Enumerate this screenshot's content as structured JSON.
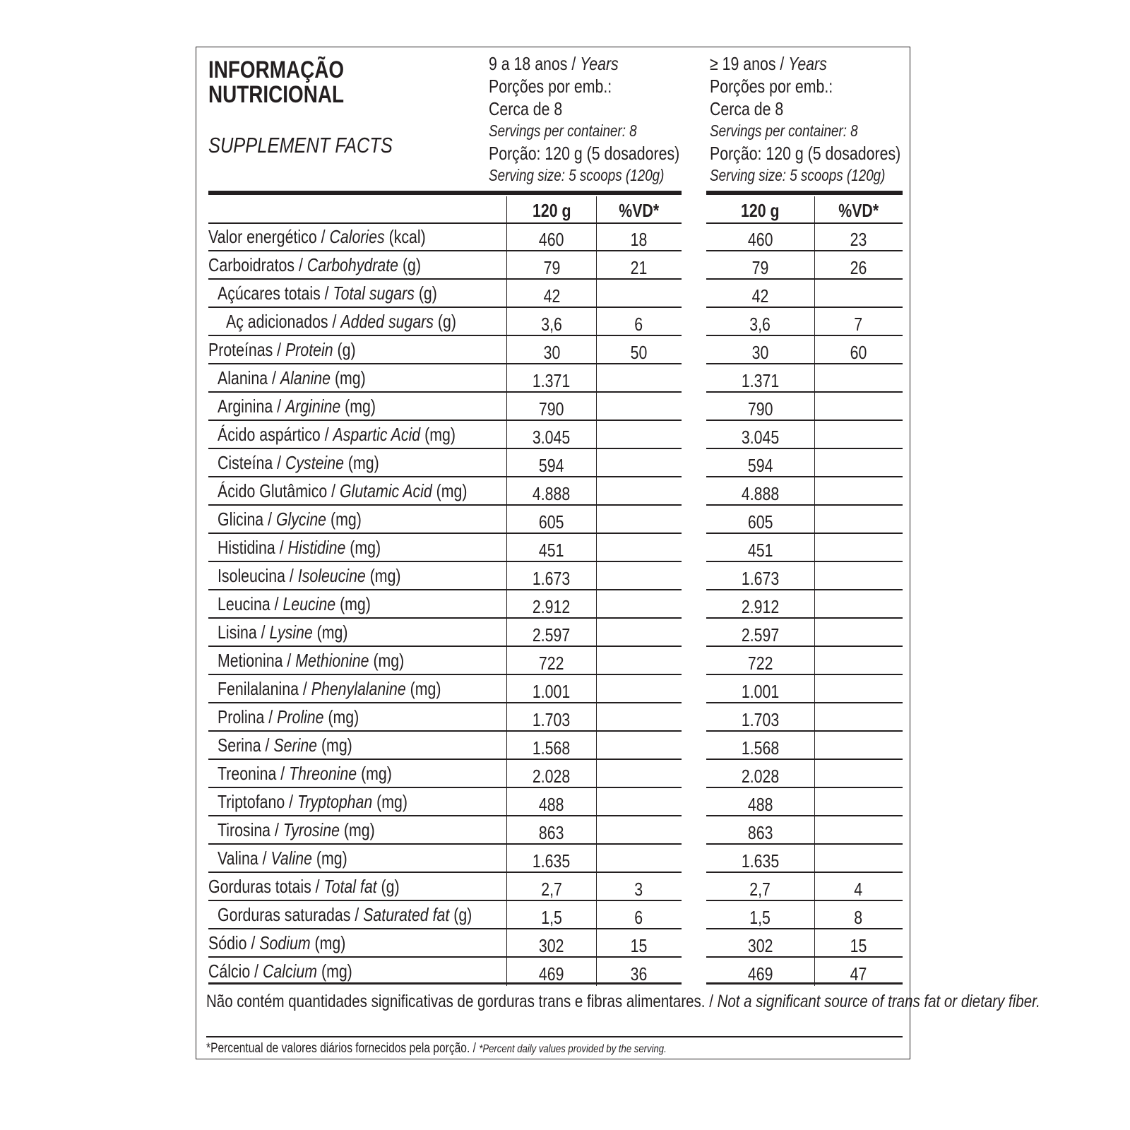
{
  "title_lines": [
    "INFORMAÇÃO",
    "NUTRICIONAL"
  ],
  "subtitle": "SUPPLEMENT FACTS",
  "groups": [
    {
      "age_pt": "9 a 18 anos",
      "age_en": "Years",
      "servings_pt_1": "Porções por emb.:",
      "servings_pt_2": "Cerca de 8",
      "servings_en": "Servings per container: 8",
      "portion_pt": "Porção: 120 g (5 dosadores)",
      "portion_en": "Serving size: 5 scoops (120g)",
      "col_amount": "120 g",
      "col_dv": "%VD*"
    },
    {
      "age_pt": "≥ 19 anos",
      "age_en": "Years",
      "servings_pt_1": "Porções por emb.:",
      "servings_pt_2": "Cerca de 8",
      "servings_en": "Servings per container: 8",
      "portion_pt": "Porção: 120 g (5 dosadores)",
      "portion_en": "Serving size: 5 scoops (120g)",
      "col_amount": "120 g",
      "col_dv": "%VD*"
    }
  ],
  "sep": " / ",
  "rows": [
    {
      "pt": "Valor energético",
      "en": "Calories",
      "unit": "(kcal)",
      "indent": 0,
      "a1": "460",
      "d1": "18",
      "a2": "460",
      "d2": "23"
    },
    {
      "pt": "Carboidratos",
      "en": "Carbohydrate",
      "unit": "(g)",
      "indent": 0,
      "a1": "79",
      "d1": "21",
      "a2": "79",
      "d2": "26"
    },
    {
      "pt": "Açúcares totais",
      "en": "Total sugars",
      "unit": "(g)",
      "indent": 1,
      "a1": "42",
      "d1": "",
      "a2": "42",
      "d2": ""
    },
    {
      "pt": "Aç adicionados",
      "en": "Added sugars",
      "unit": "(g)",
      "indent": 2,
      "a1": "3,6",
      "d1": "6",
      "a2": "3,6",
      "d2": "7"
    },
    {
      "pt": "Proteínas",
      "en": "Protein",
      "unit": "(g)",
      "indent": 0,
      "a1": "30",
      "d1": "50",
      "a2": "30",
      "d2": "60"
    },
    {
      "pt": "Alanina",
      "en": "Alanine",
      "unit": "(mg)",
      "indent": 1,
      "a1": "1.371",
      "d1": "",
      "a2": "1.371",
      "d2": ""
    },
    {
      "pt": "Arginina",
      "en": "Arginine",
      "unit": "(mg)",
      "indent": 1,
      "a1": "790",
      "d1": "",
      "a2": "790",
      "d2": ""
    },
    {
      "pt": "Ácido aspártico",
      "en": "Aspartic Acid",
      "unit": "(mg)",
      "indent": 1,
      "a1": "3.045",
      "d1": "",
      "a2": "3.045",
      "d2": ""
    },
    {
      "pt": "Cisteína",
      "en": "Cysteine",
      "unit": "(mg)",
      "indent": 1,
      "a1": "594",
      "d1": "",
      "a2": "594",
      "d2": ""
    },
    {
      "pt": "Ácido Glutâmico",
      "en": "Glutamic Acid",
      "unit": "(mg)",
      "indent": 1,
      "a1": "4.888",
      "d1": "",
      "a2": "4.888",
      "d2": ""
    },
    {
      "pt": "Glicina",
      "en": "Glycine",
      "unit": "(mg)",
      "indent": 1,
      "a1": "605",
      "d1": "",
      "a2": "605",
      "d2": ""
    },
    {
      "pt": "Histidina",
      "en": "Histidine",
      "unit": "(mg)",
      "indent": 1,
      "a1": "451",
      "d1": "",
      "a2": "451",
      "d2": ""
    },
    {
      "pt": "Isoleucina",
      "en": "Isoleucine",
      "unit": "(mg)",
      "indent": 1,
      "a1": "1.673",
      "d1": "",
      "a2": "1.673",
      "d2": ""
    },
    {
      "pt": "Leucina",
      "en": "Leucine",
      "unit": "(mg)",
      "indent": 1,
      "a1": "2.912",
      "d1": "",
      "a2": "2.912",
      "d2": ""
    },
    {
      "pt": "Lisina",
      "en": "Lysine",
      "unit": "(mg)",
      "indent": 1,
      "a1": "2.597",
      "d1": "",
      "a2": "2.597",
      "d2": ""
    },
    {
      "pt": "Metionina",
      "en": "Methionine",
      "unit": "(mg)",
      "indent": 1,
      "a1": "722",
      "d1": "",
      "a2": "722",
      "d2": ""
    },
    {
      "pt": "Fenilalanina",
      "en": "Phenylalanine",
      "unit": "(mg)",
      "indent": 1,
      "a1": "1.001",
      "d1": "",
      "a2": "1.001",
      "d2": ""
    },
    {
      "pt": "Prolina",
      "en": "Proline",
      "unit": "(mg)",
      "indent": 1,
      "a1": "1.703",
      "d1": "",
      "a2": "1.703",
      "d2": ""
    },
    {
      "pt": "Serina",
      "en": "Serine",
      "unit": "(mg)",
      "indent": 1,
      "a1": "1.568",
      "d1": "",
      "a2": "1.568",
      "d2": ""
    },
    {
      "pt": "Treonina",
      "en": "Threonine",
      "unit": "(mg)",
      "indent": 1,
      "a1": "2.028",
      "d1": "",
      "a2": "2.028",
      "d2": ""
    },
    {
      "pt": "Triptofano",
      "en": "Tryptophan",
      "unit": "(mg)",
      "indent": 1,
      "a1": "488",
      "d1": "",
      "a2": "488",
      "d2": ""
    },
    {
      "pt": "Tirosina",
      "en": "Tyrosine",
      "unit": "(mg)",
      "indent": 1,
      "a1": "863",
      "d1": "",
      "a2": "863",
      "d2": ""
    },
    {
      "pt": "Valina",
      "en": "Valine",
      "unit": "(mg)",
      "indent": 1,
      "a1": "1.635",
      "d1": "",
      "a2": "1.635",
      "d2": ""
    },
    {
      "pt": "Gorduras totais",
      "en": "Total fat",
      "unit": "(g)",
      "indent": 0,
      "a1": "2,7",
      "d1": "3",
      "a2": "2,7",
      "d2": "4"
    },
    {
      "pt": "Gorduras saturadas",
      "en": "Saturated fat",
      "unit": "(g)",
      "indent": 1,
      "a1": "1,5",
      "d1": "6",
      "a2": "1,5",
      "d2": "8"
    },
    {
      "pt": "Sódio",
      "en": "Sodium",
      "unit": "(mg)",
      "indent": 0,
      "a1": "302",
      "d1": "15",
      "a2": "302",
      "d2": "15"
    },
    {
      "pt": "Cálcio",
      "en": "Calcium",
      "unit": "(mg)",
      "indent": 0,
      "a1": "469",
      "d1": "36",
      "a2": "469",
      "d2": "47"
    }
  ],
  "footnote": {
    "pt": "Não contém quantidades significativas de gorduras trans e fibras alimentares.",
    "en": "Not a significant source of trans fat or dietary fiber."
  },
  "dv_note": {
    "pt": "*Percentual de valores diários fornecidos pela porção.",
    "en": "*Percent daily values provided by the serving."
  }
}
